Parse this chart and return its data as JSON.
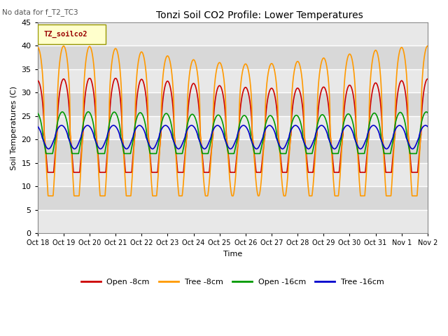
{
  "title": "Tonzi Soil CO2 Profile: Lower Temperatures",
  "subtitle": "No data for f_T2_TC3",
  "ylabel": "Soil Temperatures (C)",
  "xlabel": "Time",
  "legend_label": "TZ_soilco2",
  "series_labels": [
    "Open -8cm",
    "Tree -8cm",
    "Open -16cm",
    "Tree -16cm"
  ],
  "series_colors": [
    "#cc0000",
    "#ff9900",
    "#009900",
    "#0000cc"
  ],
  "ylim": [
    0,
    45
  ],
  "yticks": [
    0,
    5,
    10,
    15,
    20,
    25,
    30,
    35,
    40,
    45
  ],
  "xtick_labels": [
    "Oct 18",
    "Oct 19",
    "Oct 20",
    "Oct 21",
    "Oct 22",
    "Oct 23",
    "Oct 24",
    "Oct 25",
    "Oct 26",
    "Oct 27",
    "Oct 28",
    "Oct 29",
    "Oct 30",
    "Oct 31",
    "Nov 1",
    "Nov 2"
  ],
  "bg_light": "#e8e8e8",
  "bg_dark": "#d8d8d8",
  "grid_color": "#ffffff"
}
